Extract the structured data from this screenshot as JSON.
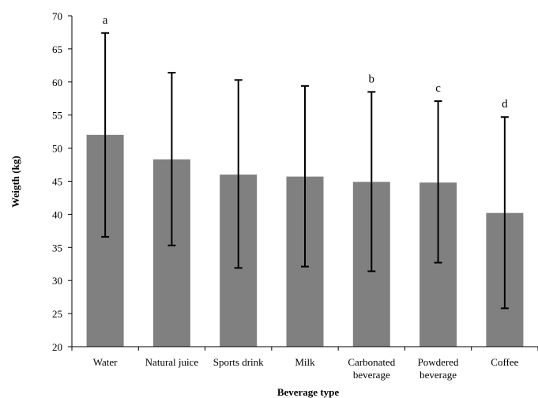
{
  "chart_data": {
    "type": "bar",
    "title": "",
    "xlabel": "Beverage type",
    "ylabel": "Weigth (kg)",
    "ylim": [
      20,
      70
    ],
    "yticks": [
      20,
      25,
      30,
      35,
      40,
      45,
      50,
      55,
      60,
      65,
      70
    ],
    "grid": false,
    "legend": "none",
    "bar_color": "#808080",
    "categories": [
      [
        "Water"
      ],
      [
        "Natural juice"
      ],
      [
        "Sports drink"
      ],
      [
        "Milk"
      ],
      [
        "Carbonated",
        "beverage"
      ],
      [
        "Powdered",
        "beverage"
      ],
      [
        "Coffee"
      ]
    ],
    "values": [
      52.0,
      48.3,
      46.0,
      45.7,
      44.9,
      44.8,
      40.2
    ],
    "error_plus": [
      15.4,
      13.1,
      14.3,
      13.7,
      13.6,
      12.3,
      14.5
    ],
    "error_minus": [
      15.4,
      13.0,
      14.1,
      13.6,
      13.5,
      12.1,
      14.4
    ],
    "annotations": [
      "a",
      "",
      "",
      "",
      "b",
      "c",
      "d"
    ]
  }
}
